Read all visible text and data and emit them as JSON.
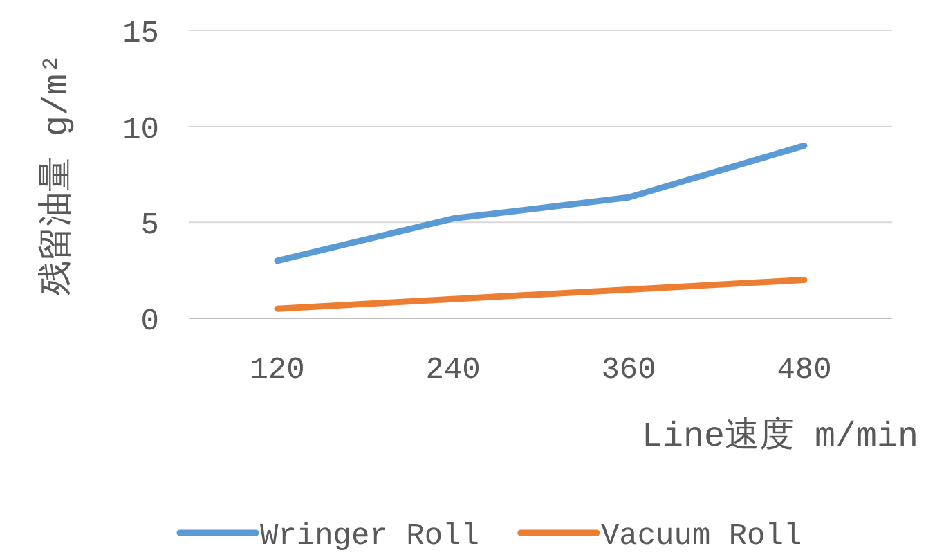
{
  "chart_data": {
    "type": "line",
    "xlabel": "Line速度 m/min",
    "ylabel": "残留油量 g/m²",
    "categories": [
      "120",
      "240",
      "360",
      "480"
    ],
    "series": [
      {
        "name": "Wringer Roll",
        "color": "#5b9bd5",
        "values": [
          3.0,
          5.2,
          6.3,
          9.0
        ]
      },
      {
        "name": "Vacuum Roll",
        "color": "#ed7d31",
        "values": [
          0.5,
          1.0,
          1.5,
          2.0
        ]
      }
    ],
    "ylim": [
      0,
      15
    ],
    "yticks": [
      0,
      5,
      10,
      15
    ],
    "grid": "y",
    "legend": "bottom",
    "marker": "none",
    "line_style": "solid"
  }
}
